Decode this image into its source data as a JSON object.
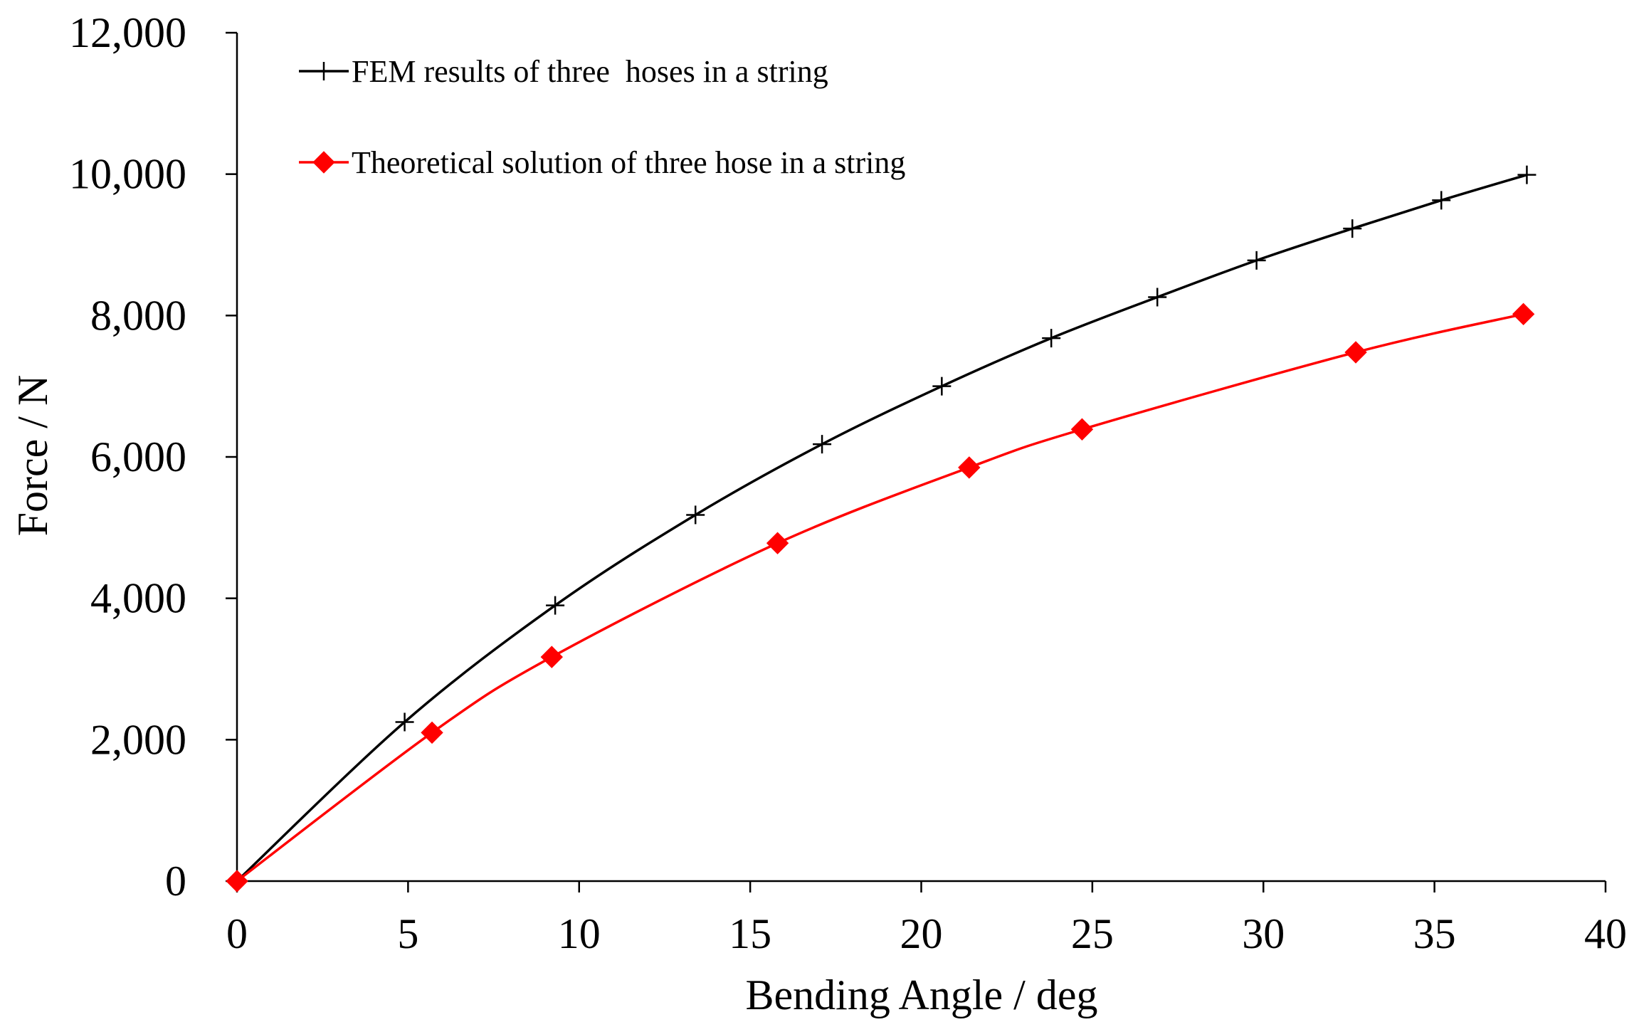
{
  "chart_data": {
    "type": "line",
    "title": "",
    "xlabel": "Bending Angle / deg",
    "ylabel": "Force / N",
    "xlim": [
      0,
      40
    ],
    "ylim": [
      0,
      12000
    ],
    "xticks": [
      0,
      5,
      10,
      15,
      20,
      25,
      30,
      35,
      40
    ],
    "yticks": [
      0,
      2000,
      4000,
      6000,
      8000,
      10000,
      12000
    ],
    "xtick_labels": [
      "0",
      "5",
      "10",
      "15",
      "20",
      "25",
      "30",
      "35",
      "40"
    ],
    "ytick_labels": [
      "0",
      "2,000",
      "4,000",
      "6,000",
      "8,000",
      "10,000",
      "12,000"
    ],
    "grid": false,
    "legend_position": "top-left",
    "series": [
      {
        "name": "FEM results of three  hoses in a string",
        "color": "#000000",
        "marker": "plus",
        "x": [
          0,
          4.9,
          9.3,
          13.4,
          17.1,
          20.6,
          23.8,
          26.9,
          29.8,
          32.6,
          35.2,
          37.7
        ],
        "y": [
          0,
          2250,
          3900,
          5180,
          6180,
          7000,
          7680,
          8260,
          8780,
          9230,
          9630,
          9990
        ]
      },
      {
        "name": "Theoretical solution of three hose in a string",
        "color": "#ff0000",
        "marker": "diamond",
        "x": [
          0,
          5.7,
          9.2,
          15.8,
          21.4,
          24.7,
          32.7,
          37.6
        ],
        "y": [
          0,
          2100,
          3170,
          4780,
          5850,
          6390,
          7480,
          8020
        ]
      }
    ]
  }
}
